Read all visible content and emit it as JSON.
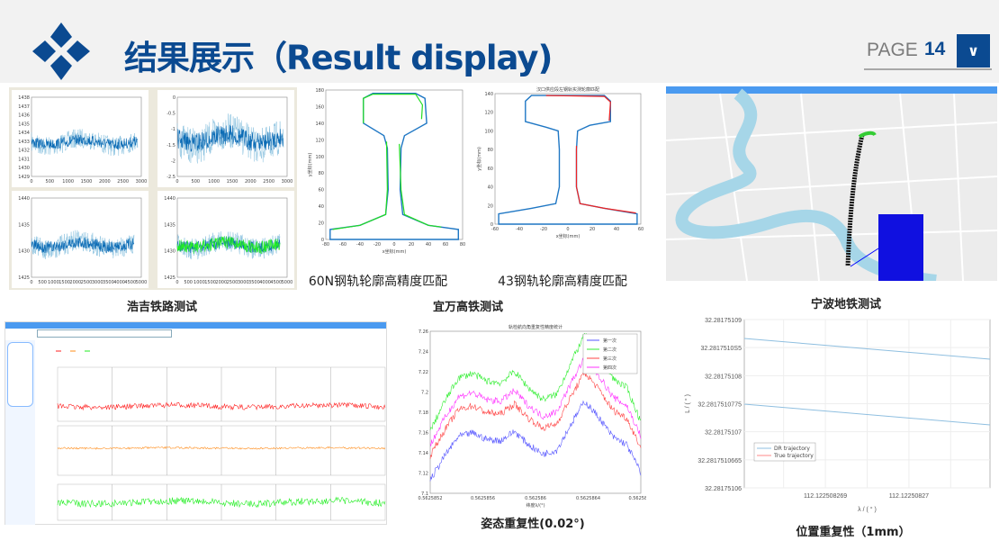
{
  "header": {
    "title": "结果展示（Result display)",
    "page_label": "PAGE",
    "page_number": "14",
    "brand_color": "#0b4a91",
    "icons": {
      "logo": "diamond-cluster-logo",
      "next": "chevron-down-icon"
    }
  },
  "sections": {
    "haoji": {
      "caption": "浩吉铁路测试",
      "charts": [
        {
          "yticks": [
            "1429",
            "1430",
            "1431",
            "1432",
            "1433",
            "1434",
            "1435",
            "1436",
            "1437",
            "1438"
          ],
          "xticks": [
            "0",
            "500",
            "1000",
            "1500",
            "2000",
            "2500",
            "3000"
          ]
        },
        {
          "yticks": [
            "0",
            "-0.5",
            "-1",
            "-1.5",
            "-2",
            "-2.5"
          ],
          "xticks": [
            "0",
            "500",
            "1000",
            "1500",
            "2000",
            "2500",
            "3000"
          ]
        },
        {
          "yticks": [
            "1440",
            "1435",
            "1430",
            "1425"
          ],
          "xticks": [
            "0",
            "500",
            "1000",
            "1500",
            "2000",
            "2500",
            "3000",
            "3500",
            "4000",
            "4500",
            "5000"
          ]
        },
        {
          "yticks": [
            "1440",
            "1435",
            "1430",
            "1425"
          ],
          "xticks": [
            "0",
            "500",
            "1000",
            "1500",
            "2000",
            "2500",
            "3000",
            "3500",
            "4000",
            "4500",
            "5000"
          ]
        }
      ]
    },
    "yiwan": {
      "caption": "宜万高铁测试",
      "rail60": {
        "caption": "60N钢轨轮廓高精度匹配",
        "xlabel": "x坐标(mm)",
        "ylabel": "y坐标(mm)",
        "xticks": [
          "-80",
          "-60",
          "-40",
          "-20",
          "0",
          "20",
          "40",
          "60",
          "80"
        ],
        "yticks": [
          "0",
          "20",
          "40",
          "60",
          "80",
          "100",
          "120",
          "140",
          "160",
          "180"
        ]
      },
      "rail43": {
        "caption": "43钢轨轮廓高精度匹配",
        "title": "汉口供应段左钢轨实测轮廓匹配",
        "xlabel": "x坐标(mm)",
        "ylabel": "y坐标(mm)",
        "xticks": [
          "-60",
          "-40",
          "-20",
          "0",
          "20",
          "40",
          "60"
        ],
        "yticks": [
          "0",
          "20",
          "40",
          "60",
          "80",
          "100",
          "120",
          "140"
        ]
      }
    },
    "ningbo": {
      "caption": "宁波地铁测试"
    },
    "attitude": {
      "caption": "姿态重复性(0.02°)",
      "title": "轨检航向角重复性精度统计",
      "xlabel": "纬度λ/(°)",
      "ylabel": "航向角ψ/(°)",
      "xticks": [
        "0.5625852",
        "0.5625856",
        "0.562586",
        "0.5625864",
        "0.5625868"
      ],
      "yticks": [
        "7.1",
        "7.12",
        "7.14",
        "7.16",
        "7.18",
        "7.2",
        "7.22",
        "7.24",
        "7.26"
      ],
      "legend": [
        "第一次",
        "第二次",
        "第三次",
        "第四次"
      ],
      "colors": [
        "#5555ff",
        "#33ee33",
        "#ff4444",
        "#ff33ff"
      ]
    },
    "position": {
      "caption": "位置重复性（1mm）",
      "xlabel": "λ / ( ° )",
      "ylabel": "L / ( ° )",
      "xticks": [
        "112.122508269",
        "112.12250827"
      ],
      "yticks": [
        "32.28175109",
        "32.2817510S5",
        "32.28175108",
        "32.2817510775",
        "32.28175107",
        "32.2817510665",
        "32.28175106"
      ],
      "legend": [
        {
          "name": "DR trajectory",
          "color": "#8fbfe0"
        },
        {
          "name": "True trajectory",
          "color": "#ff8888"
        }
      ]
    }
  }
}
